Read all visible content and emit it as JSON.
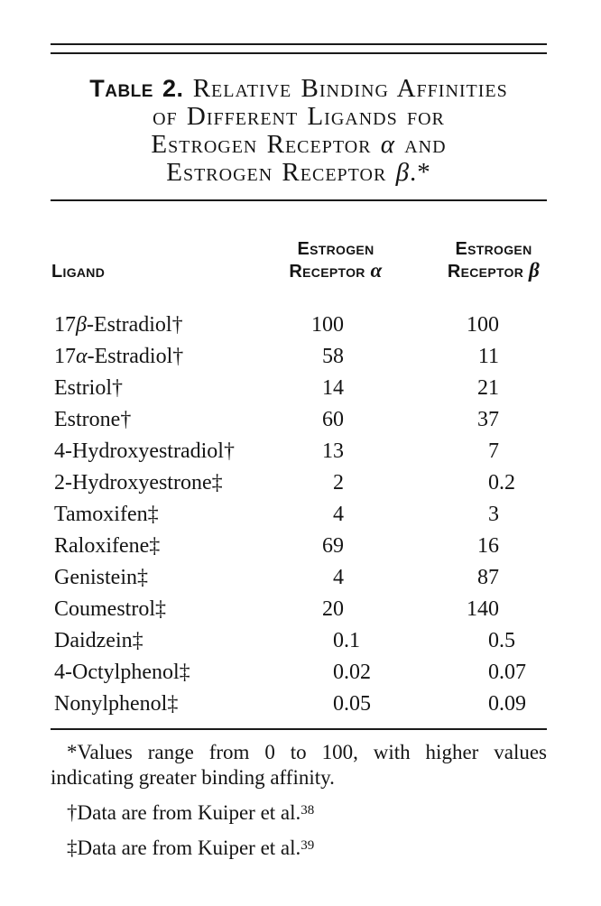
{
  "page": {
    "background": "#ffffff",
    "text_color": "#141414"
  },
  "table": {
    "title": {
      "prefix": "Table 2.",
      "lines": [
        "Relative Binding Affinities",
        "of Different Ligands for",
        "Estrogen Receptor α and",
        "Estrogen Receptor β.*"
      ]
    },
    "headers": {
      "ligand": "Ligand",
      "alpha": [
        "Estrogen",
        "Receptor α"
      ],
      "beta": [
        "Estrogen",
        "Receptor β"
      ]
    },
    "rows": [
      {
        "ligand": "17β-Estradiol†",
        "alpha": "100",
        "beta": "100"
      },
      {
        "ligand": "17α-Estradiol†",
        "alpha": "58",
        "beta": "11"
      },
      {
        "ligand": "Estriol†",
        "alpha": "14",
        "beta": "21"
      },
      {
        "ligand": "Estrone†",
        "alpha": "60",
        "beta": "37"
      },
      {
        "ligand": "4-Hydroxyestradiol†",
        "alpha": "13",
        "beta": "7"
      },
      {
        "ligand": "2-Hydroxyestrone‡",
        "alpha": "2",
        "beta": "0.2"
      },
      {
        "ligand": "Tamoxifen‡",
        "alpha": "4",
        "beta": "3"
      },
      {
        "ligand": "Raloxifene‡",
        "alpha": "69",
        "beta": "16"
      },
      {
        "ligand": "Genistein‡",
        "alpha": "4",
        "beta": "87"
      },
      {
        "ligand": "Coumestrol‡",
        "alpha": "20",
        "beta": "140"
      },
      {
        "ligand": "Daidzein‡",
        "alpha": "0.1",
        "beta": "0.5"
      },
      {
        "ligand": "4-Octylphenol‡",
        "alpha": "0.02",
        "beta": "0.07"
      },
      {
        "ligand": "Nonylphenol‡",
        "alpha": "0.05",
        "beta": "0.09"
      }
    ],
    "footnotes": [
      {
        "marker": "*",
        "text": "Values range from 0 to 100, with higher values indicating greater binding affinity.",
        "ref": ""
      },
      {
        "marker": "†",
        "text": "Data are from Kuiper et al.",
        "ref": "38"
      },
      {
        "marker": "‡",
        "text": "Data are from Kuiper et al.",
        "ref": "39"
      }
    ]
  }
}
